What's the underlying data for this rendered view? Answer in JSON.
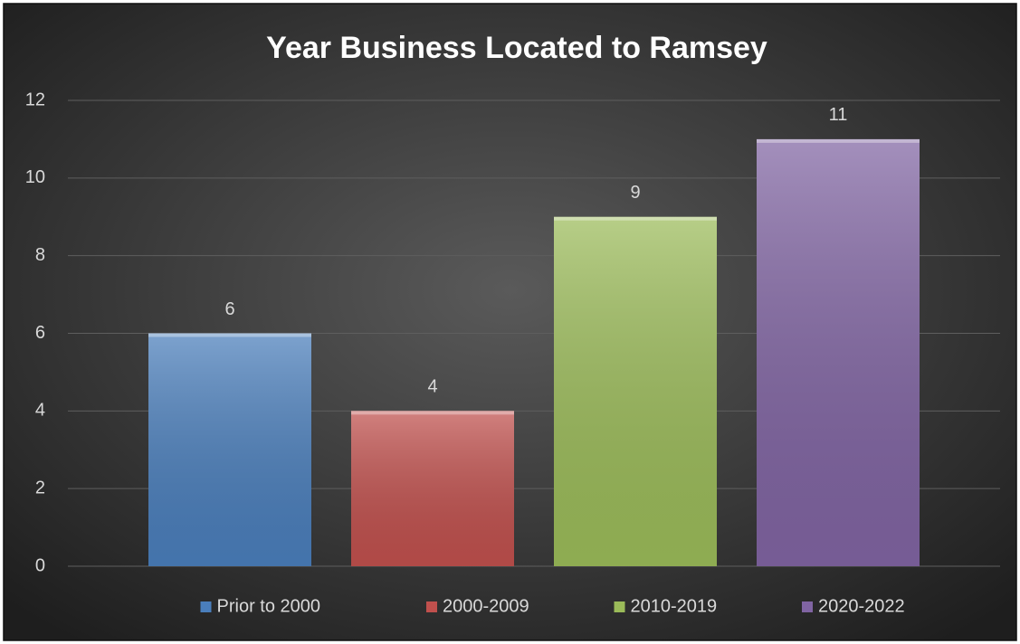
{
  "chart_data": {
    "type": "bar",
    "title": "Year Business Located to Ramsey",
    "series": [
      {
        "name": "Prior to 2000",
        "color": "#4a7ebb",
        "values": [
          6
        ]
      },
      {
        "name": "2000-2009",
        "color": "#c0504d",
        "values": [
          4
        ]
      },
      {
        "name": "2010-2019",
        "color": "#9bbb59",
        "values": [
          9
        ]
      },
      {
        "name": "2020-2022",
        "color": "#8064a2",
        "values": [
          11
        ]
      }
    ],
    "ylim": [
      0,
      12
    ],
    "yticks": [
      0,
      2,
      4,
      6,
      8,
      10,
      12
    ],
    "grid": true,
    "legend": "bottom"
  }
}
